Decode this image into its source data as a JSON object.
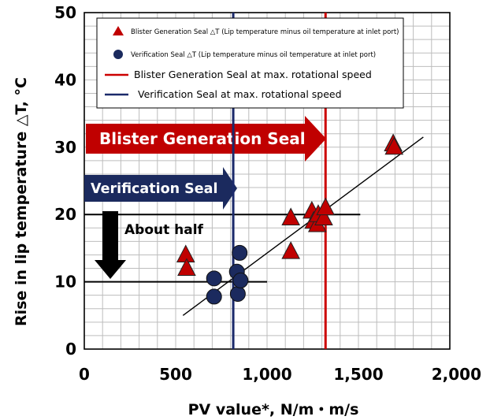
{
  "chart_data": {
    "type": "scatter",
    "xlabel": "PV value*, N/m・m/s",
    "ylabel": "Rise in lip temperature △T, °C",
    "xlim": [
      0,
      2000
    ],
    "ylim": [
      0,
      50
    ],
    "x_ticks": [
      "0",
      "500",
      "1,000",
      "1,500",
      "2,000"
    ],
    "y_ticks": [
      "0",
      "10",
      "20",
      "30",
      "40",
      "50"
    ],
    "grid": true,
    "legend_position": "top-left inside plot",
    "colors": {
      "blister": "#c00000",
      "verification": "#1b2a5e",
      "blister_line": "#cc0000",
      "verification_line": "#1b2a6b"
    },
    "series": [
      {
        "name": "Blister Generation Seal △T (Lip temperature minus oil temperature at inlet port)",
        "marker": "triangle",
        "points": [
          {
            "x": 555,
            "y": 14
          },
          {
            "x": 560,
            "y": 12
          },
          {
            "x": 1130,
            "y": 19.5
          },
          {
            "x": 1130,
            "y": 14.5
          },
          {
            "x": 1245,
            "y": 20.5
          },
          {
            "x": 1255,
            "y": 19
          },
          {
            "x": 1275,
            "y": 18.5
          },
          {
            "x": 1280,
            "y": 20
          },
          {
            "x": 1310,
            "y": 19.5
          },
          {
            "x": 1320,
            "y": 21
          },
          {
            "x": 1690,
            "y": 30.5
          },
          {
            "x": 1695,
            "y": 30
          }
        ]
      },
      {
        "name": "Verification Seal △T (Lip temperature minus oil temperature at inlet port)",
        "marker": "circle",
        "points": [
          {
            "x": 710,
            "y": 10.5
          },
          {
            "x": 710,
            "y": 7.8
          },
          {
            "x": 835,
            "y": 11.5
          },
          {
            "x": 840,
            "y": 8.2
          },
          {
            "x": 850,
            "y": 14.3
          },
          {
            "x": 855,
            "y": 10.2
          }
        ]
      }
    ],
    "vertical_lines": [
      {
        "name": "Blister Generation Seal at max. rotational speed",
        "x": 1320,
        "color": "red"
      },
      {
        "name": "Verification Seal at max. rotational speed",
        "x": 815,
        "color": "navy"
      }
    ],
    "trend_line": {
      "x1": 540,
      "y1": 5,
      "x2": 1855,
      "y2": 31.5
    },
    "horizontal_lines": [
      {
        "y": 20,
        "x_start": 0,
        "x_end": 1510
      },
      {
        "y": 10,
        "x_start": 0,
        "x_end": 1000
      }
    ],
    "annotations": {
      "blister_arrow": "Blister Generation Seal",
      "verification_arrow": "Verification Seal",
      "about_half": "About half"
    }
  }
}
